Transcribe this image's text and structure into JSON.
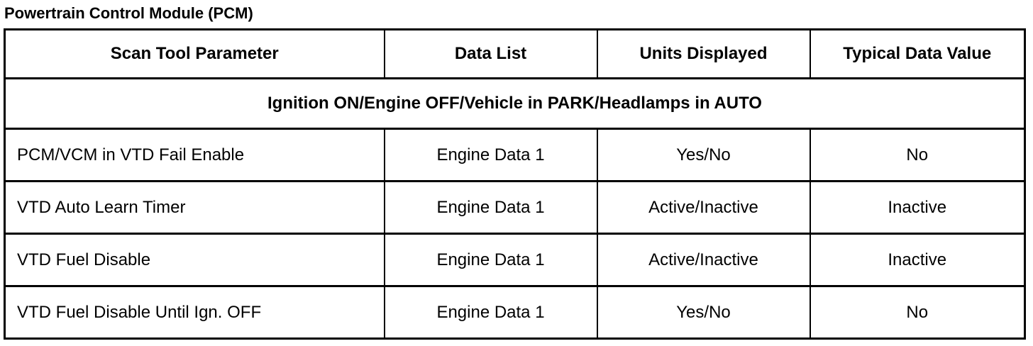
{
  "title": "Powertrain Control Module (PCM)",
  "headers": [
    "Scan Tool Parameter",
    "Data List",
    "Units Displayed",
    "Typical Data Value"
  ],
  "section": "Ignition ON/Engine OFF/Vehicle in PARK/Headlamps in AUTO",
  "rows": [
    [
      "PCM/VCM in VTD Fail Enable",
      "Engine Data 1",
      "Yes/No",
      "No"
    ],
    [
      "VTD Auto Learn Timer",
      "Engine Data 1",
      "Active/Inactive",
      "Inactive"
    ],
    [
      "VTD Fuel Disable",
      "Engine Data 1",
      "Active/Inactive",
      "Inactive"
    ],
    [
      "VTD Fuel Disable Until Ign. OFF",
      "Engine Data 1",
      "Yes/No",
      "No"
    ]
  ]
}
